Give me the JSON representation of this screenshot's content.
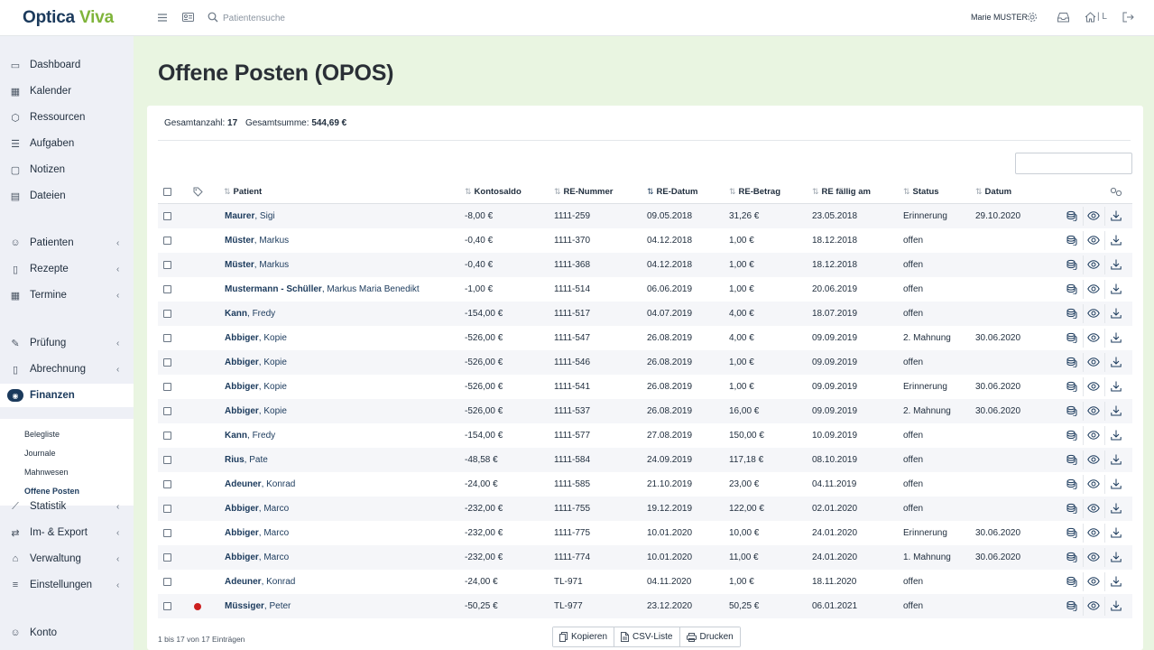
{
  "app": {
    "logo_part1": "Optica",
    "logo_part2": "Viva",
    "search_placeholder": "Patientensuche",
    "user_name": "Marie MUSTER",
    "location": "| L"
  },
  "sidebar": {
    "items": [
      {
        "label": "Dashboard",
        "icon": "monitor-icon"
      },
      {
        "label": "Kalender",
        "icon": "calendar-icon"
      },
      {
        "label": "Ressourcen",
        "icon": "cube-icon"
      },
      {
        "label": "Aufgaben",
        "icon": "list-icon"
      },
      {
        "label": "Notizen",
        "icon": "note-icon"
      },
      {
        "label": "Dateien",
        "icon": "folder-icon"
      },
      {
        "label": "Patienten",
        "icon": "user-icon"
      },
      {
        "label": "Rezepte",
        "icon": "prescription-icon"
      },
      {
        "label": "Termine",
        "icon": "calendar-check-icon"
      },
      {
        "label": "Prüfung",
        "icon": "pen-icon"
      },
      {
        "label": "Abrechnung",
        "icon": "receipt-icon"
      },
      {
        "label": "Finanzen",
        "icon": "money-icon"
      },
      {
        "label": "Statistik",
        "icon": "chart-icon"
      },
      {
        "label": "Im- & Export",
        "icon": "exchange-icon"
      },
      {
        "label": "Verwaltung",
        "icon": "bank-icon"
      },
      {
        "label": "Einstellungen",
        "icon": "sliders-icon"
      },
      {
        "label": "Konto",
        "icon": "account-icon"
      }
    ],
    "finanzen_sub": [
      "Belegliste",
      "Journale",
      "Mahnwesen",
      "Offene Posten"
    ]
  },
  "page": {
    "title": "Offene Posten (OPOS)",
    "total_count_label": "Gesamtanzahl:",
    "total_count": "17",
    "total_sum_label": "Gesamtsumme:",
    "total_sum": "544,69 €",
    "footer_info": "1 bis 17 von 17 Einträgen",
    "buttons": {
      "copy": "Kopieren",
      "csv": "CSV-Liste",
      "print": "Drucken"
    }
  },
  "table": {
    "headers": {
      "patient": "Patient",
      "balance": "Kontosaldo",
      "invoice_no": "RE-Nummer",
      "invoice_date": "RE-Datum",
      "amount": "RE-Betrag",
      "due": "RE fällig am",
      "status": "Status",
      "date": "Datum"
    },
    "rows": [
      {
        "last": "Maurer",
        "first": "Sigi",
        "balance": "-8,00 €",
        "no": "1111-259",
        "date": "09.05.2018",
        "amount": "31,26 €",
        "due": "23.05.2018",
        "status": "Erinnerung",
        "sdate": "29.10.2020",
        "flag": false
      },
      {
        "last": "Müster",
        "first": "Markus",
        "balance": "-0,40 €",
        "no": "1111-370",
        "date": "04.12.2018",
        "amount": "1,00 €",
        "due": "18.12.2018",
        "status": "offen",
        "sdate": "",
        "flag": false
      },
      {
        "last": "Müster",
        "first": "Markus",
        "balance": "-0,40 €",
        "no": "1111-368",
        "date": "04.12.2018",
        "amount": "1,00 €",
        "due": "18.12.2018",
        "status": "offen",
        "sdate": "",
        "flag": false
      },
      {
        "last": "Mustermann - Schüller",
        "first": "Markus Maria Benedikt",
        "balance": "-1,00 €",
        "no": "1111-514",
        "date": "06.06.2019",
        "amount": "1,00 €",
        "due": "20.06.2019",
        "status": "offen",
        "sdate": "",
        "flag": false
      },
      {
        "last": "Kann",
        "first": "Fredy",
        "balance": "-154,00 €",
        "no": "1111-517",
        "date": "04.07.2019",
        "amount": "4,00 €",
        "due": "18.07.2019",
        "status": "offen",
        "sdate": "",
        "flag": false
      },
      {
        "last": "Abbiger",
        "first": "Kopie",
        "balance": "-526,00 €",
        "no": "1111-547",
        "date": "26.08.2019",
        "amount": "4,00 €",
        "due": "09.09.2019",
        "status": "2. Mahnung",
        "sdate": "30.06.2020",
        "flag": false
      },
      {
        "last": "Abbiger",
        "first": "Kopie",
        "balance": "-526,00 €",
        "no": "1111-546",
        "date": "26.08.2019",
        "amount": "1,00 €",
        "due": "09.09.2019",
        "status": "offen",
        "sdate": "",
        "flag": false
      },
      {
        "last": "Abbiger",
        "first": "Kopie",
        "balance": "-526,00 €",
        "no": "1111-541",
        "date": "26.08.2019",
        "amount": "1,00 €",
        "due": "09.09.2019",
        "status": "Erinnerung",
        "sdate": "30.06.2020",
        "flag": false
      },
      {
        "last": "Abbiger",
        "first": "Kopie",
        "balance": "-526,00 €",
        "no": "1111-537",
        "date": "26.08.2019",
        "amount": "16,00 €",
        "due": "09.09.2019",
        "status": "2. Mahnung",
        "sdate": "30.06.2020",
        "flag": false
      },
      {
        "last": "Kann",
        "first": "Fredy",
        "balance": "-154,00 €",
        "no": "1111-577",
        "date": "27.08.2019",
        "amount": "150,00 €",
        "due": "10.09.2019",
        "status": "offen",
        "sdate": "",
        "flag": false
      },
      {
        "last": "Rius",
        "first": "Pate",
        "balance": "-48,58 €",
        "no": "1111-584",
        "date": "24.09.2019",
        "amount": "117,18 €",
        "due": "08.10.2019",
        "status": "offen",
        "sdate": "",
        "flag": false
      },
      {
        "last": "Adeuner",
        "first": "Konrad",
        "balance": "-24,00 €",
        "no": "1111-585",
        "date": "21.10.2019",
        "amount": "23,00 €",
        "due": "04.11.2019",
        "status": "offen",
        "sdate": "",
        "flag": false
      },
      {
        "last": "Abbiger",
        "first": "Marco",
        "balance": "-232,00 €",
        "no": "1111-755",
        "date": "19.12.2019",
        "amount": "122,00 €",
        "due": "02.01.2020",
        "status": "offen",
        "sdate": "",
        "flag": false
      },
      {
        "last": "Abbiger",
        "first": "Marco",
        "balance": "-232,00 €",
        "no": "1111-775",
        "date": "10.01.2020",
        "amount": "10,00 €",
        "due": "24.01.2020",
        "status": "Erinnerung",
        "sdate": "30.06.2020",
        "flag": false
      },
      {
        "last": "Abbiger",
        "first": "Marco",
        "balance": "-232,00 €",
        "no": "1111-774",
        "date": "10.01.2020",
        "amount": "11,00 €",
        "due": "24.01.2020",
        "status": "1. Mahnung",
        "sdate": "30.06.2020",
        "flag": false
      },
      {
        "last": "Adeuner",
        "first": "Konrad",
        "balance": "-24,00 €",
        "no": "TL-971",
        "date": "04.11.2020",
        "amount": "1,00 €",
        "due": "18.11.2020",
        "status": "offen",
        "sdate": "",
        "flag": false
      },
      {
        "last": "Müssiger",
        "first": "Peter",
        "balance": "-50,25 €",
        "no": "TL-977",
        "date": "23.12.2020",
        "amount": "50,25 €",
        "due": "06.01.2021",
        "status": "offen",
        "sdate": "",
        "flag": true
      }
    ]
  },
  "colors": {
    "brand_dark": "#1b3a5c",
    "brand_green": "#7fb43a",
    "page_bg": "#e9f5e1",
    "sidebar_bg": "#eef0f6",
    "flag_red": "#cc1f1f"
  }
}
